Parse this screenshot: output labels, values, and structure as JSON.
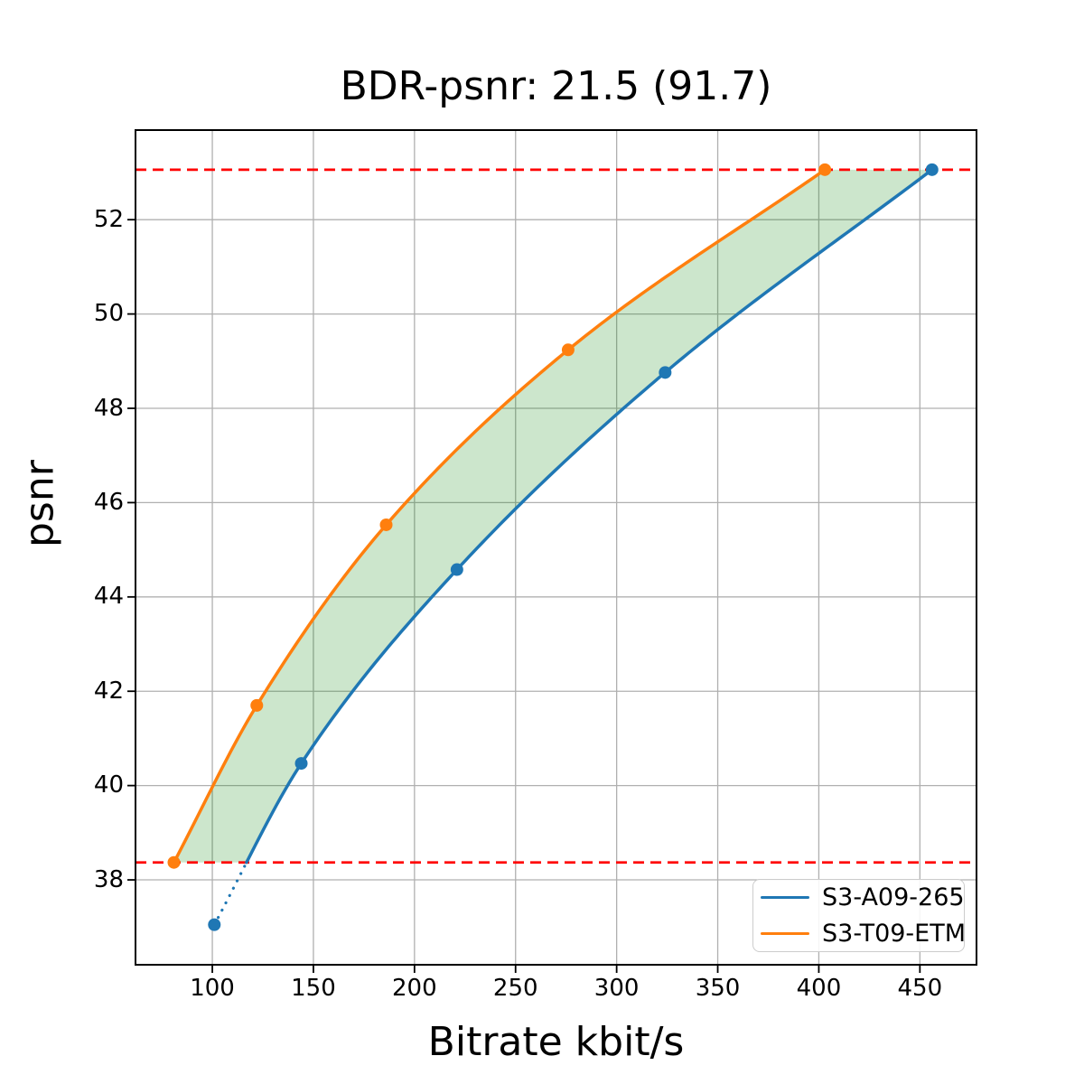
{
  "title": "BDR-psnr: 21.5 (91.7)",
  "chart_data": {
    "type": "line",
    "title": "BDR-psnr: 21.5 (91.7)",
    "xlabel": "Bitrate kbit/s",
    "ylabel": "psnr",
    "xlim": [
      62,
      478
    ],
    "ylim": [
      36.2,
      53.9
    ],
    "x_ticks": [
      100,
      150,
      200,
      250,
      300,
      350,
      400,
      450
    ],
    "y_ticks": [
      38,
      40,
      42,
      44,
      46,
      48,
      50,
      52
    ],
    "grid": true,
    "legend_position": "lower right",
    "series": [
      {
        "name": "S3-A09-265",
        "color": "#1f77b4",
        "points": [
          [
            101,
            37.05
          ],
          [
            144,
            40.47
          ],
          [
            221,
            44.58
          ],
          [
            324,
            48.76
          ],
          [
            456,
            53.06
          ]
        ]
      },
      {
        "name": "S3-T09-ETM",
        "color": "#ff7f0e",
        "points": [
          [
            81,
            38.37
          ],
          [
            122,
            41.7
          ],
          [
            186,
            45.53
          ],
          [
            276,
            49.24
          ],
          [
            403,
            53.06
          ]
        ]
      }
    ],
    "hlines": [
      {
        "y": 38.37,
        "color": "#ff0000",
        "style": "dashed"
      },
      {
        "y": 53.06,
        "color": "#ff0000",
        "style": "dashed"
      }
    ],
    "fill_between": {
      "color": "#008000",
      "opacity": 0.2,
      "y_min": 38.37,
      "y_max": 53.06
    },
    "colors": {
      "grid": "#b0b0b0",
      "spine": "#000000",
      "background": "#ffffff"
    }
  }
}
